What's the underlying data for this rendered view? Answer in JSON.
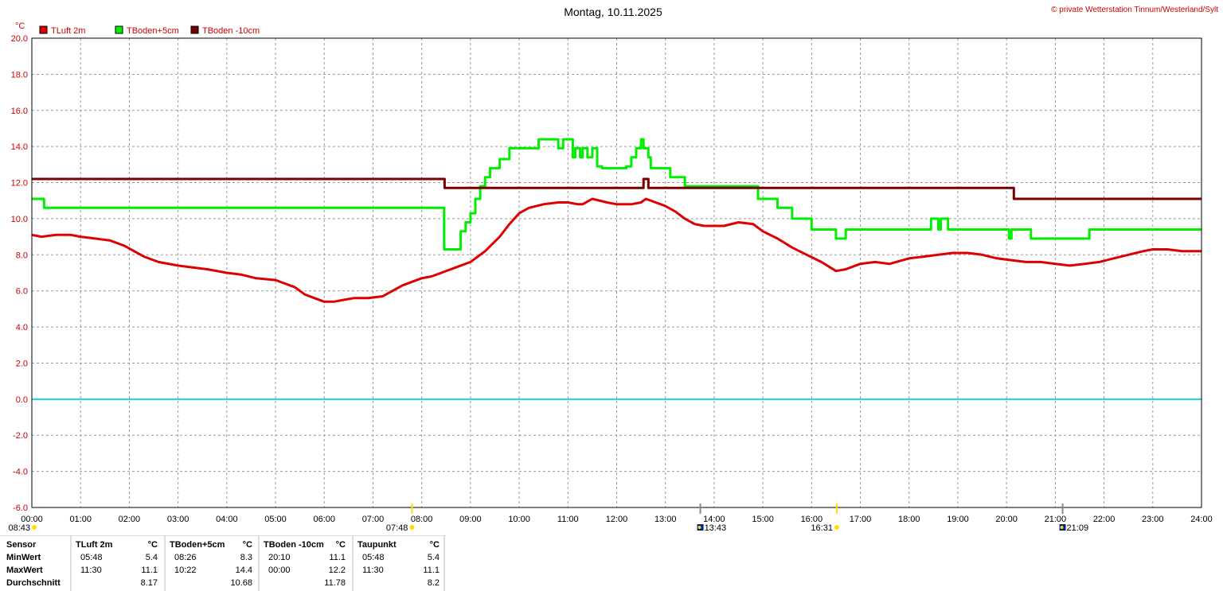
{
  "header": {
    "title": "Montag, 10.11.2025",
    "credit": "© private Wetterstation Tinnum/Westerland/Sylt",
    "unit": "°C"
  },
  "legend": [
    {
      "label": "TLuft 2m",
      "color": "#dd0000"
    },
    {
      "label": "TBoden+5cm",
      "color": "#00ee00"
    },
    {
      "label": "TBoden -10cm",
      "color": "#770000"
    }
  ],
  "chart_data": {
    "type": "line",
    "x_unit": "hours",
    "xlim": [
      0,
      24
    ],
    "ylim": [
      -6,
      20
    ],
    "y_ticks": [
      "20.0",
      "18.0",
      "16.0",
      "14.0",
      "12.0",
      "10.0",
      "8.0",
      "6.0",
      "4.0",
      "2.0",
      "0.0",
      "-2.0",
      "-4.0",
      "-6.0"
    ],
    "x_ticks": [
      "00:00",
      "01:00",
      "02:00",
      "03:00",
      "04:00",
      "05:00",
      "06:00",
      "07:00",
      "08:00",
      "09:00",
      "10:00",
      "11:00",
      "12:00",
      "13:00",
      "14:00",
      "15:00",
      "16:00",
      "17:00",
      "18:00",
      "19:00",
      "20:00",
      "21:00",
      "22:00",
      "23:00",
      "24:00"
    ],
    "grid": true,
    "reference_line": {
      "y": 0.0,
      "color": "#22ccee"
    },
    "series": [
      {
        "name": "TLuft 2m",
        "color": "#dd0000",
        "x": [
          0,
          0.2,
          0.5,
          0.8,
          1.0,
          1.3,
          1.6,
          1.9,
          2.1,
          2.3,
          2.6,
          3.0,
          3.3,
          3.6,
          4.0,
          4.3,
          4.6,
          5.0,
          5.2,
          5.4,
          5.6,
          5.8,
          6.0,
          6.2,
          6.4,
          6.6,
          6.9,
          7.2,
          7.4,
          7.6,
          7.8,
          8.0,
          8.2,
          8.4,
          8.7,
          9.0,
          9.3,
          9.6,
          9.8,
          10.0,
          10.2,
          10.5,
          10.8,
          11.0,
          11.2,
          11.3,
          11.5,
          11.8,
          12.0,
          12.3,
          12.5,
          12.6,
          12.8,
          13.0,
          13.2,
          13.4,
          13.6,
          13.8,
          14.0,
          14.2,
          14.5,
          14.8,
          15.0,
          15.3,
          15.6,
          15.9,
          16.2,
          16.5,
          16.7,
          17.0,
          17.3,
          17.6,
          18.0,
          18.3,
          18.6,
          18.9,
          19.2,
          19.5,
          19.8,
          20.1,
          20.4,
          20.7,
          21.0,
          21.3,
          21.6,
          21.9,
          22.2,
          22.5,
          22.8,
          23.0,
          23.3,
          23.6,
          24.0
        ],
        "y": [
          9.1,
          9.0,
          9.1,
          9.1,
          9.0,
          8.9,
          8.8,
          8.5,
          8.2,
          7.9,
          7.6,
          7.4,
          7.3,
          7.2,
          7.0,
          6.9,
          6.7,
          6.6,
          6.4,
          6.2,
          5.8,
          5.6,
          5.4,
          5.4,
          5.5,
          5.6,
          5.6,
          5.7,
          6.0,
          6.3,
          6.5,
          6.7,
          6.8,
          7.0,
          7.3,
          7.6,
          8.2,
          9.0,
          9.7,
          10.3,
          10.6,
          10.8,
          10.9,
          10.9,
          10.8,
          10.8,
          11.1,
          10.9,
          10.8,
          10.8,
          10.9,
          11.1,
          10.9,
          10.7,
          10.4,
          10.0,
          9.7,
          9.6,
          9.6,
          9.6,
          9.8,
          9.7,
          9.3,
          8.9,
          8.4,
          8.0,
          7.6,
          7.1,
          7.2,
          7.5,
          7.6,
          7.5,
          7.8,
          7.9,
          8.0,
          8.1,
          8.1,
          8.0,
          7.8,
          7.7,
          7.6,
          7.6,
          7.5,
          7.4,
          7.5,
          7.6,
          7.8,
          8.0,
          8.2,
          8.3,
          8.3,
          8.2,
          8.2
        ]
      },
      {
        "name": "TBoden+5cm",
        "color": "#00ee00",
        "x": [
          0,
          0.2,
          0.25,
          8.45,
          8.46,
          8.5,
          8.55,
          8.56,
          8.75,
          8.8,
          8.9,
          9.0,
          9.1,
          9.2,
          9.3,
          9.4,
          9.5,
          9.6,
          9.7,
          9.8,
          10.0,
          10.3,
          10.4,
          10.5,
          10.7,
          10.8,
          10.9,
          11.0,
          11.1,
          11.15,
          11.25,
          11.3,
          11.4,
          11.5,
          11.6,
          11.7,
          11.8,
          12.0,
          12.2,
          12.3,
          12.4,
          12.5,
          12.55,
          12.65,
          12.7,
          12.8,
          13.1,
          13.2,
          13.4,
          13.5,
          14.8,
          14.9,
          15.2,
          15.3,
          15.55,
          15.6,
          15.7,
          15.9,
          16.0,
          16.4,
          16.5,
          16.6,
          16.7,
          16.8,
          18.4,
          18.45,
          18.5,
          18.6,
          18.65,
          18.8,
          20.0,
          20.05,
          20.1,
          20.5,
          20.6,
          21.5,
          21.7,
          21.8,
          24.0
        ],
        "y": [
          11.1,
          11.1,
          10.6,
          10.6,
          8.3,
          8.3,
          8.3,
          8.3,
          8.3,
          9.3,
          9.8,
          10.3,
          11.1,
          11.8,
          12.3,
          12.8,
          12.8,
          13.3,
          13.3,
          13.9,
          13.9,
          13.9,
          14.4,
          14.4,
          14.4,
          13.9,
          14.4,
          14.4,
          13.4,
          13.9,
          13.4,
          13.9,
          13.4,
          13.9,
          12.9,
          12.8,
          12.8,
          12.8,
          12.9,
          13.4,
          13.9,
          14.4,
          13.9,
          13.4,
          12.8,
          12.8,
          12.3,
          12.3,
          11.8,
          11.8,
          11.8,
          11.1,
          11.1,
          10.6,
          10.6,
          10.0,
          10.0,
          10.0,
          9.4,
          9.4,
          8.9,
          8.9,
          9.4,
          9.4,
          9.4,
          10.0,
          10.0,
          9.4,
          10.0,
          9.4,
          9.4,
          8.9,
          9.4,
          8.9,
          8.9,
          8.9,
          9.4,
          9.4,
          9.4
        ]
      },
      {
        "name": "TBoden -10cm",
        "color": "#770000",
        "x": [
          0,
          8.45,
          8.47,
          12.5,
          12.55,
          12.6,
          12.65,
          20.1,
          20.15,
          24.0
        ],
        "y": [
          12.2,
          12.2,
          11.7,
          11.7,
          12.2,
          12.2,
          11.7,
          11.7,
          11.1,
          11.1
        ]
      }
    ]
  },
  "sun_markers": [
    {
      "time": "08:43",
      "kind": "sun"
    },
    {
      "time": "07:48",
      "kind": "sun"
    },
    {
      "time": "13:43",
      "kind": "moon"
    },
    {
      "time": "16:31",
      "kind": "sun"
    },
    {
      "time": "21:09",
      "kind": "moon"
    }
  ],
  "stats": {
    "columns": [
      {
        "name": "Sensor",
        "unit": "",
        "rows": [
          "MinWert",
          "MaxWert",
          "Durchschnitt"
        ],
        "times": null
      },
      {
        "name": "TLuft 2m",
        "unit": "°C",
        "times": [
          "05:48",
          "11:30",
          ""
        ],
        "values": [
          "5.4",
          "11.1",
          "8.17"
        ]
      },
      {
        "name": "TBoden+5cm",
        "unit": "°C",
        "times": [
          "08:26",
          "10:22",
          ""
        ],
        "values": [
          "8.3",
          "14.4",
          "10.68"
        ]
      },
      {
        "name": "TBoden -10cm",
        "unit": "°C",
        "times": [
          "20:10",
          "00:00",
          ""
        ],
        "values": [
          "11.1",
          "12.2",
          "11.78"
        ]
      },
      {
        "name": "Taupunkt",
        "unit": "°C",
        "times": [
          "05:48",
          "11:30",
          ""
        ],
        "values": [
          "5.4",
          "11.1",
          "8.2"
        ]
      }
    ]
  }
}
